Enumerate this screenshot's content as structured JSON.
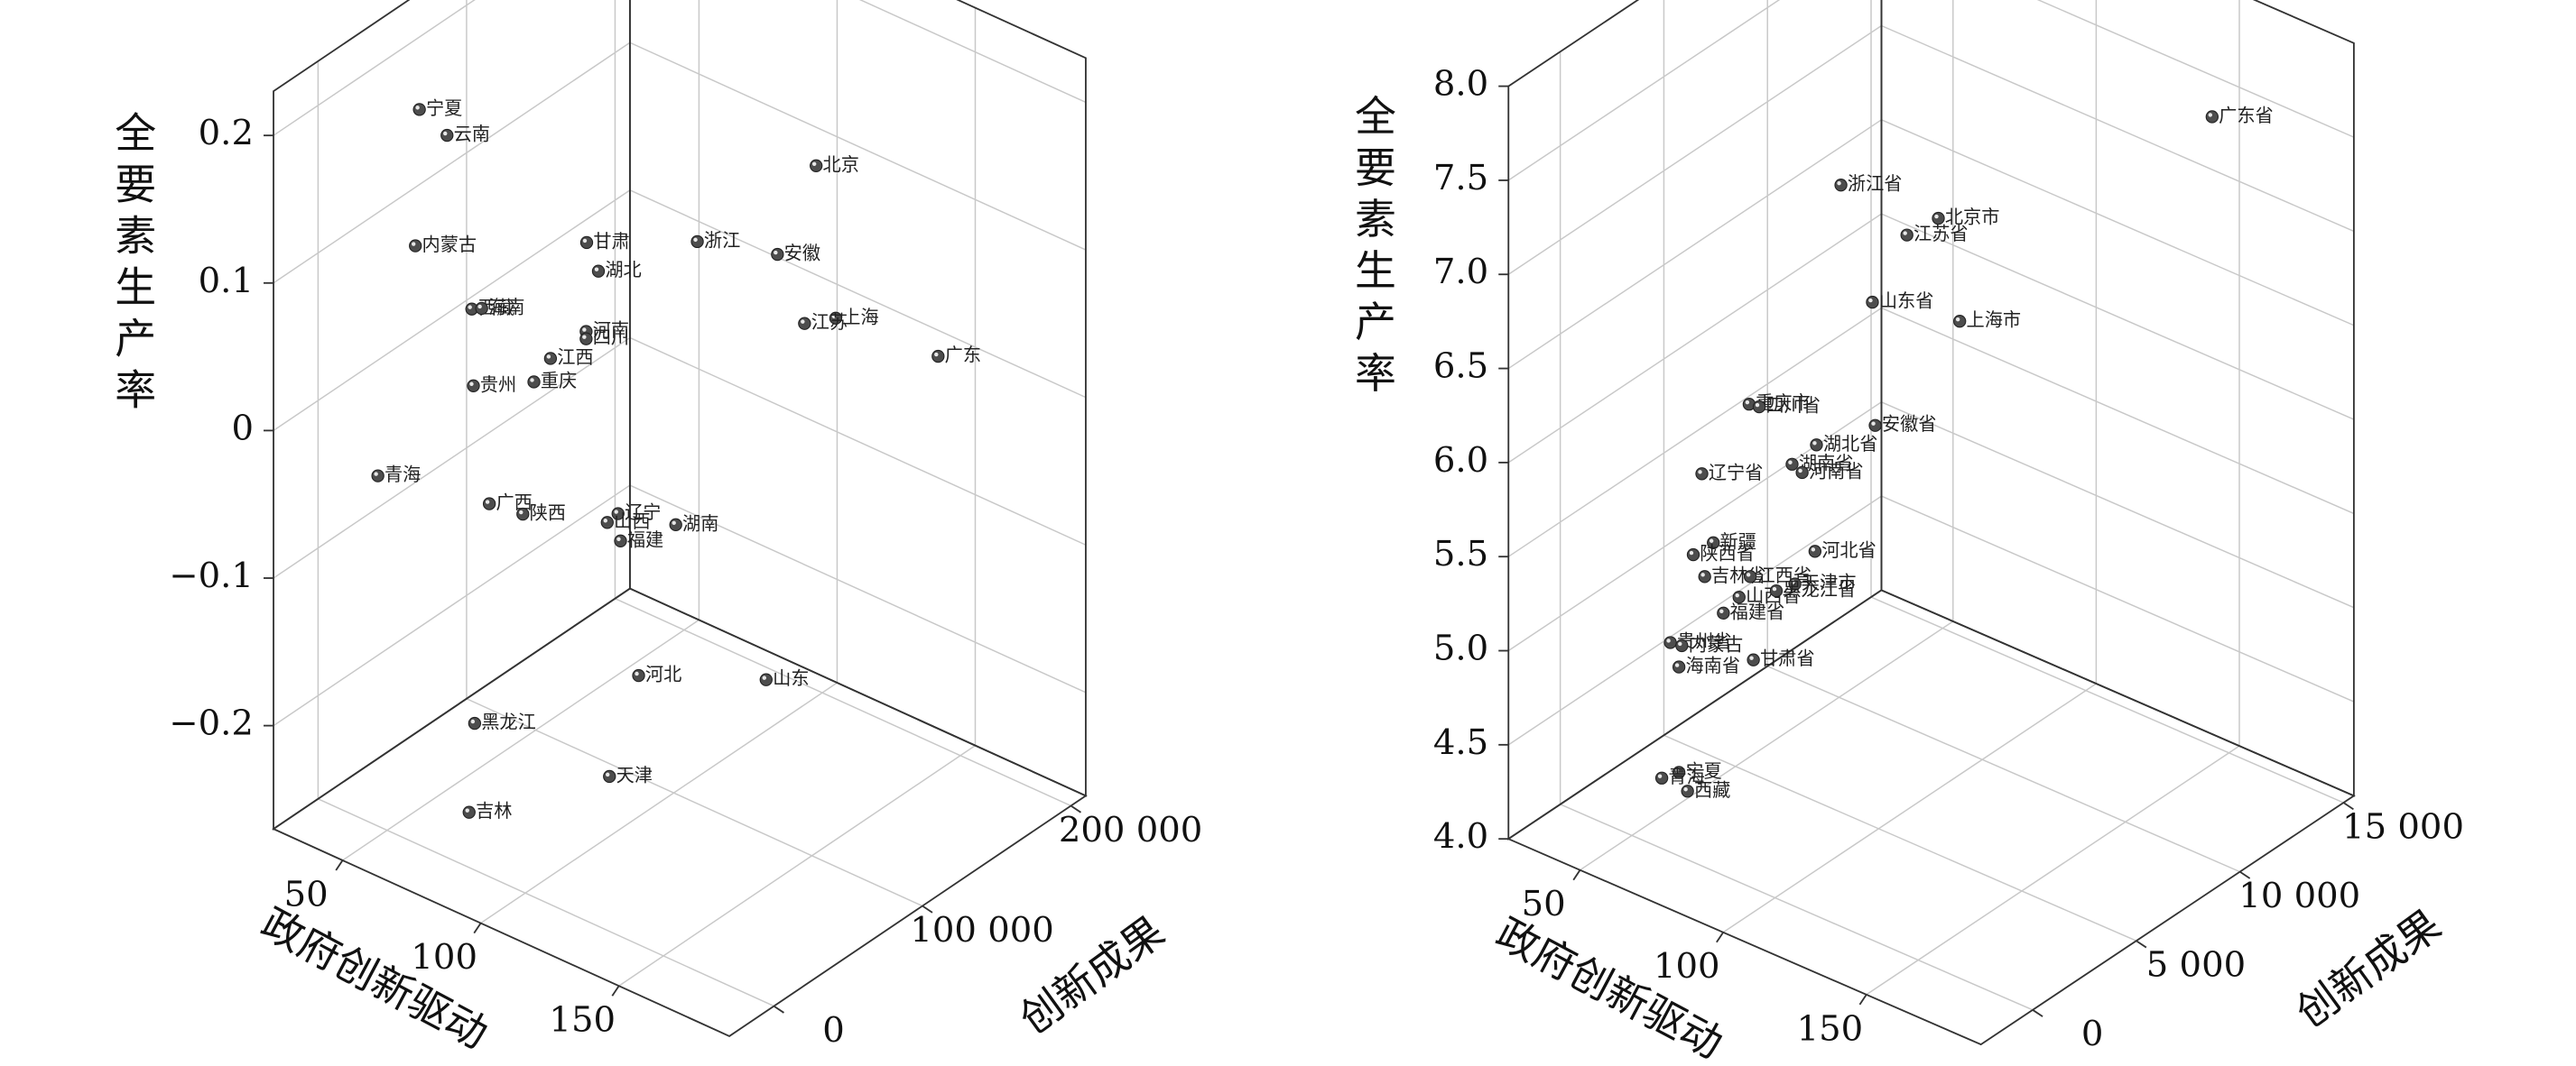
{
  "chart_data": [
    {
      "type": "scatter3d",
      "x_label": "政府创新驱动",
      "y_label": "创新成果",
      "z_label": "全要素生产率",
      "color": "#4d4d4d",
      "grid": true,
      "xlim": [
        25,
        190
      ],
      "ylim": [
        -30000,
        210000
      ],
      "zlim": [
        -0.27,
        0.23
      ],
      "xticks": [
        50,
        100,
        150
      ],
      "yticks": [
        0,
        {
          "value": 100000,
          "label": "100 000"
        },
        {
          "value": 200000,
          "label": "200 000"
        }
      ],
      "zticks": [
        {
          "value": -0.2,
          "label": "−0.2"
        },
        {
          "value": -0.1,
          "label": "−0.1"
        },
        0,
        0.1,
        0.2
      ],
      "labels": [
        "宁夏",
        "云南",
        "内蒙古",
        "甘肃",
        "湖北",
        "浙江",
        "安徽",
        "北京",
        "上海",
        "江苏",
        "广东",
        "西藏",
        "海南",
        "河南",
        "四川",
        "江西",
        "重庆",
        "贵州",
        "青海",
        "广西",
        "陕西",
        "辽宁",
        "山西",
        "福建",
        "湖南",
        "河北",
        "山东",
        "黑龙江",
        "天津",
        "吉林"
      ],
      "x": [
        52,
        62,
        57,
        119,
        91,
        101,
        130,
        144,
        164,
        114,
        143,
        80,
        81,
        93,
        93,
        93,
        87,
        78,
        46,
        80,
        83,
        111,
        120,
        99,
        119,
        112,
        113,
        72,
        95,
        70
      ],
      "y": [
        18000,
        18000,
        6000,
        6000,
        66000,
        114000,
        114000,
        114000,
        90000,
        162000,
        198000,
        1200,
        6000,
        54000,
        54000,
        30000,
        30000,
        6000,
        1200,
        13000,
        30000,
        42000,
        18000,
        66000,
        66000,
        54000,
        138000,
        18000,
        66000,
        18000
      ],
      "z": [
        0.208,
        0.199,
        0.128,
        0.183,
        0.099,
        0.095,
        0.111,
        0.183,
        0.113,
        0.018,
        -0.004,
        0.108,
        0.106,
        0.068,
        0.063,
        0.066,
        0.045,
        0.051,
        -0.034,
        -0.032,
        -0.048,
        -0.032,
        -0.014,
        -0.077,
        -0.049,
        -0.149,
        -0.208,
        -0.191,
        -0.24,
        -0.253
      ]
    },
    {
      "type": "scatter3d",
      "x_label": "政府创新驱动",
      "y_label": "创新成果",
      "z_label": "全要素生产率",
      "color": "#4d4d4d",
      "grid": true,
      "xlim": [
        25,
        190
      ],
      "ylim": [
        -2500,
        15500
      ],
      "zlim": [
        4,
        8
      ],
      "xticks": [
        50,
        100,
        150
      ],
      "yticks": [
        0,
        {
          "value": 5000,
          "label": "5 000"
        },
        {
          "value": 10000,
          "label": "10 000"
        },
        {
          "value": 15000,
          "label": "15 000"
        }
      ],
      "zticks": [
        {
          "value": 4,
          "label": "4.0"
        },
        4.5,
        {
          "value": 5,
          "label": "5.0"
        },
        5.5,
        {
          "value": 6,
          "label": "6.0"
        },
        6.5,
        {
          "value": 7,
          "label": "7.0"
        },
        7.5,
        {
          "value": 8,
          "label": "8.0"
        }
      ],
      "labels": [
        "广东省",
        "浙江省",
        "北京市",
        "江苏省",
        "山东省",
        "上海市",
        "重庆市",
        "四川省",
        "安徽省",
        "湖北省",
        "湖南省",
        "河南省",
        "辽宁省",
        "河北省",
        "新疆",
        "陕西省",
        "吉林省",
        "江西省",
        "山西省",
        "天津市",
        "黑龙江省",
        "福建省",
        "贵州省",
        "内蒙古",
        "海南省",
        "甘肃省",
        "宁夏",
        "青海",
        "西藏"
      ],
      "x": [
        147,
        89,
        110,
        86,
        100,
        137,
        83,
        80,
        114,
        100,
        98,
        95,
        73,
        106,
        77,
        70,
        74,
        86,
        86,
        99,
        99,
        74,
        62,
        66,
        65,
        91,
        65,
        59,
        68
      ],
      "y": [
        14600,
        4700,
        6500,
        8300,
        4700,
        3800,
        1100,
        2000,
        2900,
        2000,
        1100,
        2000,
        200,
        1100,
        200,
        200,
        200,
        740,
        200,
        1100,
        200,
        1100,
        200,
        200,
        200,
        200,
        200,
        200,
        200
      ],
      "z": [
        7.39,
        7.37,
        7.2,
        6.82,
        6.82,
        7.03,
        6.43,
        6.33,
        6.39,
        6.26,
        6.21,
        6.08,
        6.06,
        5.8,
        5.72,
        5.61,
        5.52,
        5.56,
        5.49,
        5.58,
        5.61,
        5.26,
        5.09,
        5.1,
        4.98,
        5.19,
        4.42,
        4.35,
        4.34
      ]
    }
  ]
}
